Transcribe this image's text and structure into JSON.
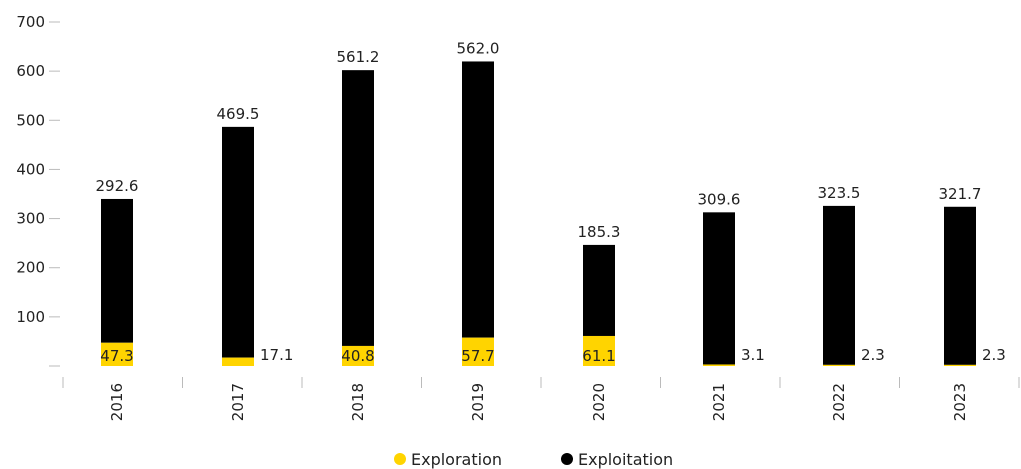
{
  "chart_data": {
    "type": "bar",
    "stacked": true,
    "categories": [
      "2016",
      "2017",
      "2018",
      "2019",
      "2020",
      "2021",
      "2022",
      "2023"
    ],
    "series": [
      {
        "name": "Exploration",
        "values": [
          47.3,
          17.1,
          40.8,
          57.7,
          61.1,
          3.1,
          2.3,
          2.3
        ],
        "color": "#FFD400"
      },
      {
        "name": "Exploitation",
        "values": [
          292.6,
          469.5,
          561.2,
          562.0,
          185.3,
          309.6,
          323.5,
          321.7
        ],
        "color": "#000000"
      }
    ],
    "y_ticks": [
      "700",
      "600",
      "500",
      "400",
      "300",
      "200",
      "100",
      ""
    ],
    "ylim": [
      0,
      700
    ],
    "legend": {
      "position": "bottom",
      "items": [
        "Exploration",
        "Exploitation"
      ]
    }
  }
}
